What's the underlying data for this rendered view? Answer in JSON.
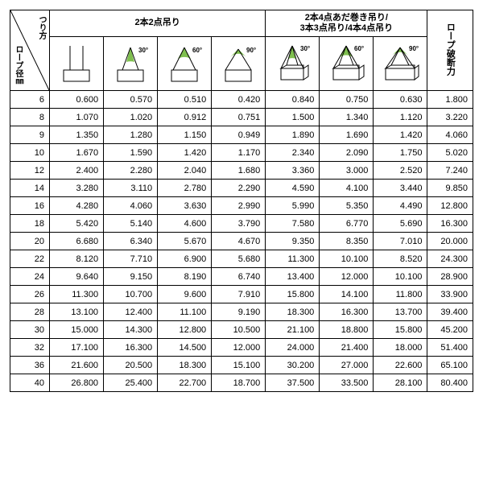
{
  "header": {
    "diag_top": "つり方",
    "diag_bot": "ロープ径㎜",
    "group1": "2本2点吊り",
    "group2_l1": "2本4点あだ巻き吊り/",
    "group2_l2": "3本3点吊り/4本4点吊り",
    "break": "ロープ破断力",
    "angles": [
      "30°",
      "60°",
      "90°",
      "30°",
      "60°",
      "90°"
    ]
  },
  "style": {
    "stroke": "#000",
    "fill_angle": "#7fbf4f",
    "cell_bg": "#ffffff"
  },
  "diameters": [
    6,
    8,
    9,
    10,
    12,
    14,
    16,
    18,
    20,
    22,
    24,
    26,
    28,
    30,
    32,
    36,
    40
  ],
  "rows": [
    [
      "0.600",
      "0.570",
      "0.510",
      "0.420",
      "0.840",
      "0.750",
      "0.630",
      "1.800"
    ],
    [
      "1.070",
      "1.020",
      "0.912",
      "0.751",
      "1.500",
      "1.340",
      "1.120",
      "3.220"
    ],
    [
      "1.350",
      "1.280",
      "1.150",
      "0.949",
      "1.890",
      "1.690",
      "1.420",
      "4.060"
    ],
    [
      "1.670",
      "1.590",
      "1.420",
      "1.170",
      "2.340",
      "2.090",
      "1.750",
      "5.020"
    ],
    [
      "2.400",
      "2.280",
      "2.040",
      "1.680",
      "3.360",
      "3.000",
      "2.520",
      "7.240"
    ],
    [
      "3.280",
      "3.110",
      "2.780",
      "2.290",
      "4.590",
      "4.100",
      "3.440",
      "9.850"
    ],
    [
      "4.280",
      "4.060",
      "3.630",
      "2.990",
      "5.990",
      "5.350",
      "4.490",
      "12.800"
    ],
    [
      "5.420",
      "5.140",
      "4.600",
      "3.790",
      "7.580",
      "6.770",
      "5.690",
      "16.300"
    ],
    [
      "6.680",
      "6.340",
      "5.670",
      "4.670",
      "9.350",
      "8.350",
      "7.010",
      "20.000"
    ],
    [
      "8.120",
      "7.710",
      "6.900",
      "5.680",
      "11.300",
      "10.100",
      "8.520",
      "24.300"
    ],
    [
      "9.640",
      "9.150",
      "8.190",
      "6.740",
      "13.400",
      "12.000",
      "10.100",
      "28.900"
    ],
    [
      "11.300",
      "10.700",
      "9.600",
      "7.910",
      "15.800",
      "14.100",
      "11.800",
      "33.900"
    ],
    [
      "13.100",
      "12.400",
      "11.100",
      "9.190",
      "18.300",
      "16.300",
      "13.700",
      "39.400"
    ],
    [
      "15.000",
      "14.300",
      "12.800",
      "10.500",
      "21.100",
      "18.800",
      "15.800",
      "45.200"
    ],
    [
      "17.100",
      "16.300",
      "14.500",
      "12.000",
      "24.000",
      "21.400",
      "18.000",
      "51.400"
    ],
    [
      "21.600",
      "20.500",
      "18.300",
      "15.100",
      "30.200",
      "27.000",
      "22.600",
      "65.100"
    ],
    [
      "26.800",
      "25.400",
      "22.700",
      "18.700",
      "37.500",
      "33.500",
      "28.100",
      "80.400"
    ]
  ]
}
